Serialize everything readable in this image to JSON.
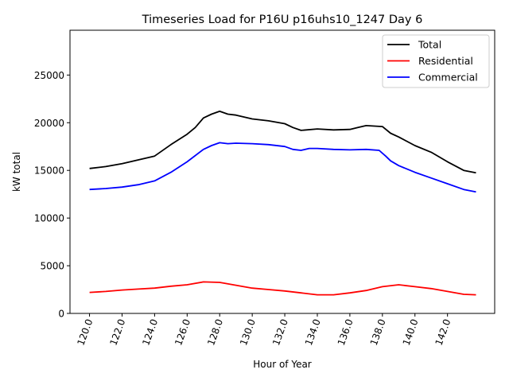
{
  "chart_data": {
    "type": "line",
    "title": "Timeseries Load for P16U p16uhs10_1247  Day 6",
    "xlabel": "Hour of Year",
    "ylabel": "kW total",
    "xlim": [
      118.8,
      144.9
    ],
    "ylim": [
      0,
      29700
    ],
    "xticks": [
      120,
      122,
      124,
      126,
      128,
      130,
      132,
      134,
      136,
      138,
      140,
      142
    ],
    "xtick_labels": [
      "120.0",
      "122.0",
      "124.0",
      "126.0",
      "128.0",
      "130.0",
      "132.0",
      "134.0",
      "136.0",
      "138.0",
      "140.0",
      "142.0"
    ],
    "yticks": [
      0,
      5000,
      10000,
      15000,
      20000,
      25000
    ],
    "ytick_labels": [
      "0",
      "5000",
      "10000",
      "15000",
      "20000",
      "25000"
    ],
    "grid": false,
    "legend_position": "top-right",
    "series": [
      {
        "name": "Total",
        "color": "#000000",
        "x": [
          120,
          121,
          122,
          123,
          124,
          125,
          126,
          126.5,
          127,
          127.5,
          128,
          128.5,
          129,
          130,
          131,
          132,
          132.5,
          133,
          134,
          135,
          136,
          136.5,
          137,
          138,
          138.5,
          139,
          140,
          141,
          142,
          143,
          143.75
        ],
        "y": [
          15200,
          15400,
          15700,
          16100,
          16500,
          17700,
          18800,
          19500,
          20500,
          20900,
          21200,
          20900,
          20800,
          20400,
          20200,
          19900,
          19500,
          19200,
          19350,
          19250,
          19300,
          19500,
          19700,
          19600,
          18900,
          18500,
          17600,
          16900,
          15900,
          15000,
          14750
        ]
      },
      {
        "name": "Residential",
        "color": "#ff0000",
        "x": [
          120,
          121,
          122,
          123,
          124,
          125,
          126,
          127,
          128,
          129,
          130,
          131,
          132,
          133,
          134,
          135,
          136,
          137,
          138,
          139,
          140,
          141,
          142,
          143,
          143.75
        ],
        "y": [
          2200,
          2300,
          2450,
          2550,
          2650,
          2850,
          3000,
          3300,
          3250,
          2950,
          2650,
          2500,
          2350,
          2150,
          1950,
          1950,
          2150,
          2400,
          2800,
          3000,
          2800,
          2600,
          2300,
          2000,
          1950
        ]
      },
      {
        "name": "Commercial",
        "color": "#0000ff",
        "x": [
          120,
          121,
          122,
          123,
          124,
          125,
          126,
          127,
          127.5,
          128,
          128.5,
          129,
          130,
          131,
          132,
          132.5,
          133,
          133.5,
          134,
          135,
          136,
          137,
          137.8,
          138.2,
          138.5,
          139,
          140,
          141,
          142,
          143,
          143.75
        ],
        "y": [
          13000,
          13100,
          13250,
          13500,
          13900,
          14800,
          15900,
          17200,
          17600,
          17900,
          17800,
          17850,
          17800,
          17700,
          17500,
          17200,
          17100,
          17300,
          17300,
          17200,
          17150,
          17200,
          17100,
          16500,
          16000,
          15500,
          14800,
          14200,
          13600,
          13000,
          12750
        ]
      }
    ]
  }
}
